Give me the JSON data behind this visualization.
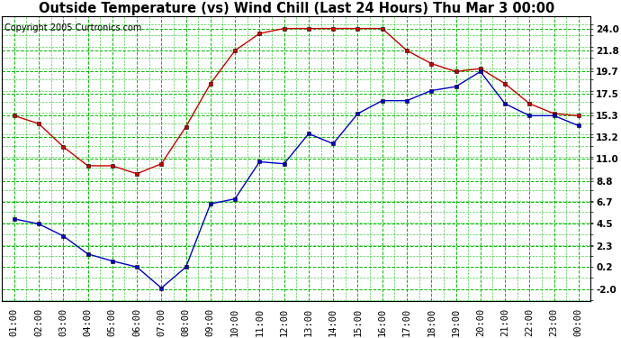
{
  "title": "Outside Temperature (vs) Wind Chill (Last 24 Hours) Thu Mar 3 00:00",
  "copyright": "Copyright 2005 Curtronics.com",
  "x_labels": [
    "01:00",
    "02:00",
    "03:00",
    "04:00",
    "05:00",
    "06:00",
    "07:00",
    "08:00",
    "09:00",
    "10:00",
    "11:00",
    "12:00",
    "13:00",
    "14:00",
    "15:00",
    "16:00",
    "17:00",
    "18:00",
    "19:00",
    "20:00",
    "21:00",
    "22:00",
    "23:00",
    "00:00"
  ],
  "outside_temp": [
    15.3,
    14.5,
    12.2,
    10.3,
    10.3,
    9.5,
    10.5,
    14.2,
    18.5,
    21.8,
    23.5,
    24.0,
    24.0,
    24.0,
    24.0,
    24.0,
    21.8,
    20.5,
    19.7,
    20.0,
    18.5,
    16.5,
    15.5,
    15.3
  ],
  "wind_chill": [
    5.0,
    4.5,
    3.3,
    1.5,
    0.8,
    0.2,
    -1.9,
    0.2,
    6.5,
    7.0,
    10.7,
    10.5,
    13.5,
    12.5,
    15.5,
    16.8,
    16.8,
    17.8,
    18.2,
    19.7,
    16.5,
    15.3,
    15.3,
    14.3
  ],
  "temp_color": "#cc0000",
  "wind_color": "#0000cc",
  "marker_color": "#000000",
  "bg_color": "#ffffff",
  "plot_bg": "#ffffff",
  "grid_color": "#00bb00",
  "yticks": [
    -2.0,
    0.2,
    2.3,
    4.5,
    6.7,
    8.8,
    11.0,
    13.2,
    15.3,
    17.5,
    19.7,
    21.8,
    24.0
  ],
  "ylim": [
    -3.2,
    25.2
  ],
  "title_fontsize": 10.5,
  "tick_fontsize": 7.5,
  "copyright_fontsize": 7,
  "figwidth": 6.9,
  "figheight": 3.75,
  "dpi": 100
}
